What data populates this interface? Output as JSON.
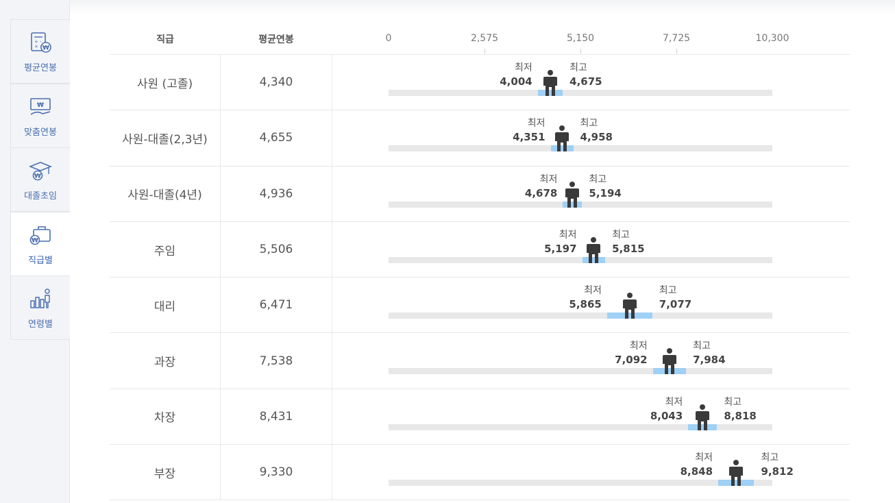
{
  "sidebar": {
    "items": [
      {
        "label": "평균연봉",
        "icon": "calculator-won-icon",
        "active": false
      },
      {
        "label": "맞춤연봉",
        "icon": "money-hand-icon",
        "active": false
      },
      {
        "label": "대졸초임",
        "icon": "graduation-cap-icon",
        "active": false
      },
      {
        "label": "직급별",
        "icon": "briefcase-won-icon",
        "active": true
      },
      {
        "label": "연령별",
        "icon": "bar-chart-person-icon",
        "active": false
      }
    ]
  },
  "table": {
    "col_rank": "직급",
    "col_avg": "평균연봉",
    "min_label": "최저",
    "max_label": "최고"
  },
  "chart_data": {
    "type": "range",
    "ylabel": "",
    "xlim": [
      0,
      10300
    ],
    "ticks": [
      "0",
      "2,575",
      "5,150",
      "7,725",
      "10,300"
    ],
    "tick_values": [
      0,
      2575,
      5150,
      7725,
      10300
    ],
    "rows": [
      {
        "rank": "사원 (고졸)",
        "avg": 4340,
        "avg_label": "4,340",
        "min": 4004,
        "min_label": "4,004",
        "max": 4675,
        "max_label": "4,675"
      },
      {
        "rank": "사원-대졸(2,3년)",
        "avg": 4655,
        "avg_label": "4,655",
        "min": 4351,
        "min_label": "4,351",
        "max": 4958,
        "max_label": "4,958"
      },
      {
        "rank": "사원-대졸(4년)",
        "avg": 4936,
        "avg_label": "4,936",
        "min": 4678,
        "min_label": "4,678",
        "max": 5194,
        "max_label": "5,194"
      },
      {
        "rank": "주임",
        "avg": 5506,
        "avg_label": "5,506",
        "min": 5197,
        "min_label": "5,197",
        "max": 5815,
        "max_label": "5,815"
      },
      {
        "rank": "대리",
        "avg": 6471,
        "avg_label": "6,471",
        "min": 5865,
        "min_label": "5,865",
        "max": 7077,
        "max_label": "7,077"
      },
      {
        "rank": "과장",
        "avg": 7538,
        "avg_label": "7,538",
        "min": 7092,
        "min_label": "7,092",
        "max": 7984,
        "max_label": "7,984"
      },
      {
        "rank": "차장",
        "avg": 8431,
        "avg_label": "8,431",
        "min": 8043,
        "min_label": "8,043",
        "max": 8818,
        "max_label": "8,818"
      },
      {
        "rank": "부장",
        "avg": 9330,
        "avg_label": "9,330",
        "min": 8848,
        "min_label": "8,848",
        "max": 9812,
        "max_label": "9,812"
      }
    ]
  }
}
